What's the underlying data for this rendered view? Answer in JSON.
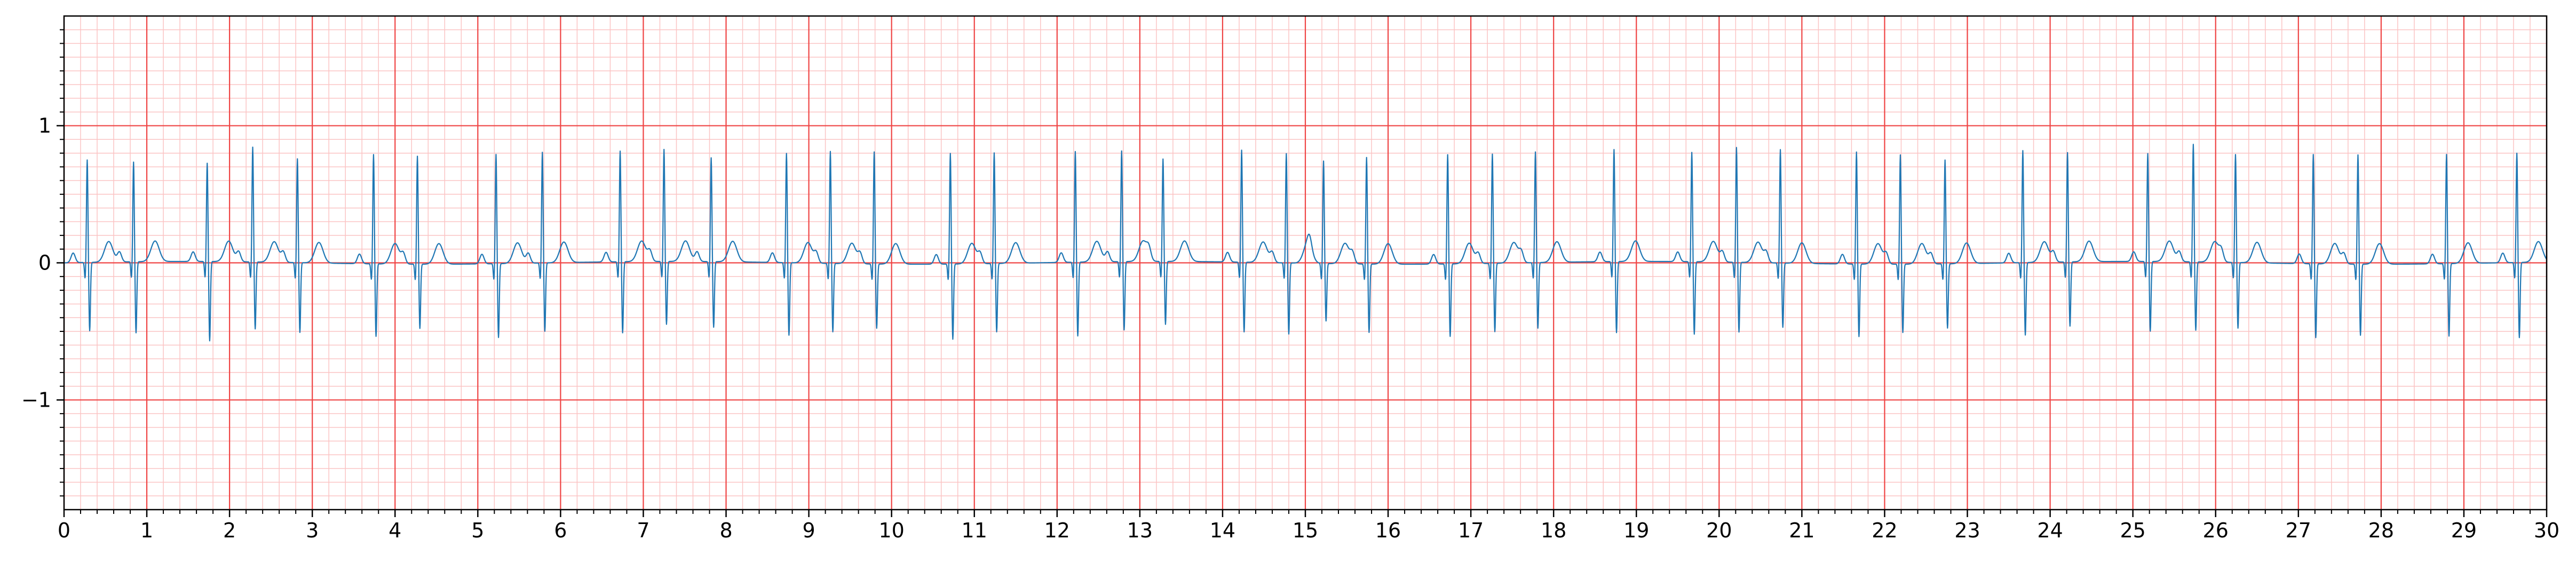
{
  "chart_data": {
    "type": "line",
    "title": "",
    "xlabel": "",
    "ylabel": "",
    "xlim": [
      0,
      30
    ],
    "ylim": [
      -1.8,
      1.8
    ],
    "grid": true,
    "x_ticks": [
      0,
      1,
      2,
      3,
      4,
      5,
      6,
      7,
      8,
      9,
      10,
      11,
      12,
      13,
      14,
      15,
      16,
      17,
      18,
      19,
      20,
      21,
      22,
      23,
      24,
      25,
      26,
      27,
      28,
      29,
      30
    ],
    "x_tick_labels": [
      "0",
      "1",
      "2",
      "3",
      "4",
      "5",
      "6",
      "7",
      "8",
      "9",
      "10",
      "11",
      "12",
      "13",
      "14",
      "15",
      "16",
      "17",
      "18",
      "19",
      "20",
      "21",
      "22",
      "23",
      "24",
      "25",
      "26",
      "27",
      "28",
      "29",
      "30"
    ],
    "y_ticks": [
      -1,
      0,
      1
    ],
    "y_tick_labels": [
      "−1",
      "0",
      "1"
    ],
    "colors": {
      "major_grid": "#ef4444",
      "minor_grid": "#fbc4c4",
      "line": "#1f77b4",
      "axes": "#000000"
    },
    "series": [
      {
        "beat_times": [
          0.28,
          0.84,
          1.73,
          2.28,
          2.82,
          3.74,
          4.27,
          5.22,
          5.78,
          6.72,
          7.25,
          7.82,
          8.73,
          9.26,
          9.79,
          10.71,
          11.24,
          12.22,
          12.78,
          13.28,
          14.23,
          14.77,
          15.22,
          15.74,
          16.72,
          17.26,
          17.78,
          18.73,
          19.67,
          20.21,
          20.74,
          21.66,
          22.19,
          22.73,
          23.67,
          24.21,
          25.18,
          25.73,
          26.24,
          27.18,
          27.72,
          28.79,
          29.64
        ],
        "r_peak_values": [
          0.75,
          0.73,
          0.72,
          0.84,
          0.76,
          0.8,
          0.79,
          0.8,
          0.81,
          0.81,
          0.82,
          0.76,
          0.8,
          0.82,
          0.82,
          0.81,
          0.81,
          0.81,
          0.81,
          0.75,
          0.82,
          0.8,
          0.75,
          0.78,
          0.8,
          0.8,
          0.81,
          0.82,
          0.8,
          0.84,
          0.83,
          0.82,
          0.8,
          0.76,
          0.82,
          0.8,
          0.79,
          0.86,
          0.79,
          0.8,
          0.8,
          0.8,
          0.8
        ],
        "s_trough_values": [
          -0.5,
          -0.52,
          -0.58,
          -0.49,
          -0.51,
          -0.53,
          -0.47,
          -0.54,
          -0.5,
          -0.52,
          -0.46,
          -0.48,
          -0.53,
          -0.5,
          -0.47,
          -0.55,
          -0.5,
          -0.54,
          -0.5,
          -0.46,
          -0.51,
          -0.52,
          -0.42,
          -0.5,
          -0.53,
          -0.5,
          -0.48,
          -0.52,
          -0.53,
          -0.51,
          -0.47,
          -0.53,
          -0.5,
          -0.47,
          -0.53,
          -0.47,
          -0.51,
          -0.5,
          -0.48,
          -0.54,
          -0.52,
          -0.53,
          -0.55
        ]
      }
    ]
  }
}
